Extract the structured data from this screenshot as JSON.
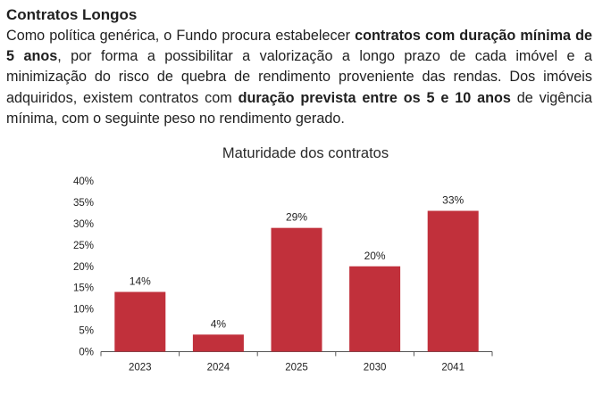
{
  "section": {
    "title": "Contratos Longos",
    "paragraph": [
      {
        "text": "Como política genérica, o Fundo procura estabelecer ",
        "bold": false
      },
      {
        "text": "contratos com duração mínima de 5 anos",
        "bold": true
      },
      {
        "text": ", por forma a possibilitar a valorização a longo prazo de cada imóvel e a minimização do risco de quebra de rendimento proveniente das rendas. Dos imóveis adquiridos, existem contratos com ",
        "bold": false
      },
      {
        "text": "duração prevista entre os 5 e 10 anos",
        "bold": true
      },
      {
        "text": " de vigência mínima, com o seguinte peso no rendimento gerado.",
        "bold": false
      }
    ]
  },
  "colors": {
    "bar": "#c1303b",
    "axis": "#555555"
  },
  "chart_data": {
    "type": "bar",
    "title": "Maturidade dos contratos",
    "categories": [
      "2023",
      "2024",
      "2025",
      "2030",
      "2041"
    ],
    "values": [
      14,
      4,
      29,
      20,
      33
    ],
    "data_labels": [
      "14%",
      "4%",
      "29%",
      "20%",
      "33%"
    ],
    "ylim": [
      0,
      40
    ],
    "yticks": [
      0,
      5,
      10,
      15,
      20,
      25,
      30,
      35,
      40
    ],
    "ytick_labels": [
      "0%",
      "5%",
      "10%",
      "15%",
      "20%",
      "25%",
      "30%",
      "35%",
      "40%"
    ],
    "xlabel": "",
    "ylabel": "",
    "grid": false,
    "legend": false
  }
}
